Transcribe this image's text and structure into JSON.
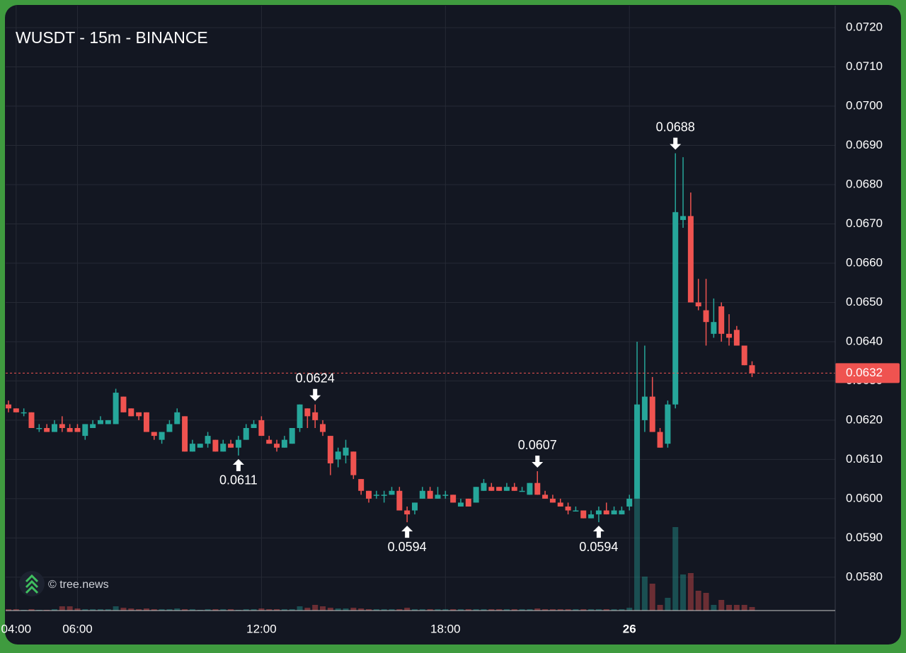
{
  "chart_data": {
    "type": "candlestick",
    "title": "WUSDT - 15m - BINANCE",
    "watermark": "© tree.news",
    "categories": [
      "03:45",
      "04:00",
      "04:15",
      "04:30",
      "04:45",
      "05:00",
      "05:15",
      "05:30",
      "05:45",
      "06:00",
      "06:15",
      "06:30",
      "06:45",
      "07:00",
      "07:15",
      "07:30",
      "07:45",
      "08:00",
      "08:15",
      "08:30",
      "08:45",
      "09:00",
      "09:15",
      "09:30",
      "09:45",
      "10:00",
      "10:15",
      "10:30",
      "10:45",
      "11:00",
      "11:15",
      "11:30",
      "11:45",
      "12:00",
      "12:15",
      "12:30",
      "12:45",
      "13:00",
      "13:15",
      "13:30",
      "13:45",
      "14:00",
      "14:15",
      "14:30",
      "14:45",
      "15:00",
      "15:15",
      "15:30",
      "15:45",
      "16:00",
      "16:15",
      "16:30",
      "16:45",
      "17:00",
      "17:15",
      "17:30",
      "17:45",
      "18:00",
      "18:15",
      "18:30",
      "18:45",
      "19:00",
      "19:15",
      "19:30",
      "19:45",
      "20:00",
      "20:15",
      "20:30",
      "20:45",
      "21:00",
      "21:15",
      "21:30",
      "21:45",
      "22:00",
      "22:15",
      "22:30",
      "22:45",
      "23:00",
      "23:15",
      "23:30",
      "23:45",
      "00:00",
      "00:15",
      "00:30",
      "00:45",
      "01:00",
      "01:15",
      "01:30",
      "01:45",
      "02:00",
      "02:15",
      "02:30",
      "02:45",
      "03:00",
      "03:15",
      "03:30",
      "03:45",
      "04:00"
    ],
    "open": [
      0.0624,
      0.0623,
      0.0622,
      0.0622,
      0.0618,
      0.0618,
      0.0617,
      0.0619,
      0.0618,
      0.0618,
      0.0616,
      0.0618,
      0.0619,
      0.0619,
      0.0619,
      0.0626,
      0.0623,
      0.0622,
      0.0622,
      0.0617,
      0.0615,
      0.0617,
      0.0619,
      0.0621,
      0.0612,
      0.0613,
      0.0614,
      0.0615,
      0.0612,
      0.0614,
      0.0613,
      0.0615,
      0.0618,
      0.062,
      0.0615,
      0.0614,
      0.0613,
      0.0614,
      0.0618,
      0.0623,
      0.0622,
      0.0619,
      0.0616,
      0.061,
      0.0611,
      0.0612,
      0.0605,
      0.0602,
      0.0601,
      0.0601,
      0.0601,
      0.0602,
      0.0597,
      0.0597,
      0.06,
      0.0602,
      0.06,
      0.0601,
      0.0601,
      0.0598,
      0.06,
      0.0599,
      0.0602,
      0.0603,
      0.0603,
      0.0602,
      0.0603,
      0.0602,
      0.0601,
      0.0604,
      0.0601,
      0.06,
      0.0599,
      0.0598,
      0.0597,
      0.0597,
      0.0595,
      0.0596,
      0.0597,
      0.0596,
      0.0596,
      0.0598,
      0.06,
      0.062,
      0.0626,
      0.0617,
      0.0614,
      0.0624,
      0.0671,
      0.0672,
      0.065,
      0.0648,
      0.0642,
      0.0649,
      0.0642,
      0.0643,
      0.0639,
      0.0634
    ],
    "high": [
      0.0625,
      0.0623,
      0.0623,
      0.0622,
      0.0619,
      0.0619,
      0.062,
      0.0621,
      0.0619,
      0.0619,
      0.0619,
      0.062,
      0.0621,
      0.062,
      0.0628,
      0.0626,
      0.0623,
      0.0622,
      0.0622,
      0.0617,
      0.0617,
      0.062,
      0.0623,
      0.0621,
      0.0615,
      0.0614,
      0.0617,
      0.0615,
      0.0615,
      0.0615,
      0.0616,
      0.0619,
      0.062,
      0.0621,
      0.0616,
      0.0615,
      0.0616,
      0.0618,
      0.0624,
      0.0623,
      0.0624,
      0.062,
      0.0616,
      0.0613,
      0.0615,
      0.0612,
      0.0605,
      0.0602,
      0.0602,
      0.0602,
      0.0603,
      0.0603,
      0.0598,
      0.0599,
      0.0603,
      0.0603,
      0.0603,
      0.0602,
      0.0601,
      0.06,
      0.06,
      0.0603,
      0.0605,
      0.0604,
      0.0603,
      0.0604,
      0.0604,
      0.0603,
      0.0604,
      0.0607,
      0.0602,
      0.0601,
      0.06,
      0.0599,
      0.0598,
      0.0597,
      0.0597,
      0.0598,
      0.0599,
      0.0598,
      0.0598,
      0.0601,
      0.064,
      0.0639,
      0.0631,
      0.0618,
      0.0625,
      0.0688,
      0.0687,
      0.0678,
      0.0656,
      0.0656,
      0.0651,
      0.065,
      0.0647,
      0.0644,
      0.0639,
      0.0635
    ],
    "low": [
      0.0622,
      0.0622,
      0.0621,
      0.0618,
      0.0617,
      0.0617,
      0.0617,
      0.0617,
      0.0617,
      0.0617,
      0.0615,
      0.0618,
      0.0619,
      0.0619,
      0.0619,
      0.0622,
      0.0621,
      0.062,
      0.0617,
      0.0615,
      0.0614,
      0.0617,
      0.0619,
      0.0612,
      0.0612,
      0.0613,
      0.0613,
      0.0612,
      0.0612,
      0.0613,
      0.0611,
      0.0615,
      0.0618,
      0.0616,
      0.0614,
      0.0612,
      0.0613,
      0.0614,
      0.0617,
      0.0618,
      0.0618,
      0.0616,
      0.0606,
      0.0608,
      0.0609,
      0.0605,
      0.0601,
      0.0599,
      0.06,
      0.0599,
      0.0601,
      0.0597,
      0.0594,
      0.0596,
      0.06,
      0.06,
      0.06,
      0.06,
      0.0599,
      0.0598,
      0.0598,
      0.0599,
      0.0602,
      0.0602,
      0.0602,
      0.0602,
      0.0602,
      0.0602,
      0.0601,
      0.0601,
      0.06,
      0.0599,
      0.0598,
      0.0596,
      0.0597,
      0.0595,
      0.0595,
      0.0594,
      0.0596,
      0.0596,
      0.0596,
      0.0597,
      0.06,
      0.0617,
      0.0617,
      0.0613,
      0.0613,
      0.0623,
      0.0669,
      0.065,
      0.0648,
      0.0639,
      0.0641,
      0.064,
      0.0639,
      0.0639,
      0.0634,
      0.0631
    ],
    "close": [
      0.0623,
      0.0622,
      0.0622,
      0.0618,
      0.0618,
      0.0617,
      0.0619,
      0.0618,
      0.0617,
      0.0617,
      0.0619,
      0.0619,
      0.062,
      0.062,
      0.0627,
      0.0622,
      0.0621,
      0.0621,
      0.0617,
      0.0616,
      0.0617,
      0.0619,
      0.0622,
      0.0612,
      0.0614,
      0.0614,
      0.0616,
      0.0612,
      0.0614,
      0.0613,
      0.0615,
      0.0618,
      0.0619,
      0.0616,
      0.0614,
      0.0613,
      0.0615,
      0.0618,
      0.0624,
      0.0621,
      0.062,
      0.0617,
      0.0609,
      0.0612,
      0.0613,
      0.0606,
      0.0602,
      0.06,
      0.0601,
      0.0601,
      0.0602,
      0.0597,
      0.0596,
      0.0599,
      0.0602,
      0.06,
      0.0601,
      0.0601,
      0.0599,
      0.0599,
      0.0598,
      0.0603,
      0.0604,
      0.0602,
      0.0602,
      0.0603,
      0.0602,
      0.0602,
      0.0604,
      0.0601,
      0.06,
      0.0599,
      0.0598,
      0.0597,
      0.0597,
      0.0595,
      0.0596,
      0.0597,
      0.0596,
      0.0597,
      0.0597,
      0.06,
      0.0624,
      0.0626,
      0.0617,
      0.0613,
      0.0624,
      0.0673,
      0.0672,
      0.065,
      0.0649,
      0.0645,
      0.0645,
      0.0642,
      0.0641,
      0.0639,
      0.0634,
      0.0632
    ],
    "volume": [
      2,
      2,
      1,
      2,
      1,
      1,
      2,
      6,
      6,
      3,
      2,
      2,
      2,
      2,
      6,
      4,
      3,
      2,
      3,
      2,
      2,
      2,
      3,
      2,
      2,
      1,
      2,
      2,
      2,
      2,
      1,
      2,
      2,
      3,
      2,
      2,
      2,
      2,
      6,
      4,
      8,
      6,
      4,
      3,
      3,
      4,
      3,
      2,
      2,
      2,
      2,
      2,
      4,
      2,
      2,
      2,
      2,
      2,
      2,
      2,
      2,
      2,
      2,
      2,
      2,
      2,
      2,
      2,
      2,
      3,
      2,
      2,
      2,
      2,
      2,
      2,
      2,
      2,
      2,
      2,
      2,
      4,
      158,
      48,
      38,
      8,
      18,
      118,
      51,
      53,
      28,
      25,
      8,
      15,
      8,
      8,
      8,
      5
    ],
    "up_color": "#26a69a",
    "down_color": "#ef5350",
    "grid": true,
    "ylim": [
      0.05715,
      0.07256
    ],
    "yticks": [
      {
        "value": 0.058,
        "label": "0.0580"
      },
      {
        "value": 0.059,
        "label": "0.0590"
      },
      {
        "value": 0.06,
        "label": "0.0600"
      },
      {
        "value": 0.061,
        "label": "0.0610"
      },
      {
        "value": 0.062,
        "label": "0.0620"
      },
      {
        "value": 0.063,
        "label": "0.0630"
      },
      {
        "value": 0.064,
        "label": "0.0640"
      },
      {
        "value": 0.065,
        "label": "0.0650"
      },
      {
        "value": 0.066,
        "label": "0.0660"
      },
      {
        "value": 0.067,
        "label": "0.0670"
      },
      {
        "value": 0.068,
        "label": "0.0680"
      },
      {
        "value": 0.069,
        "label": "0.0690"
      },
      {
        "value": 0.07,
        "label": "0.0700"
      },
      {
        "value": 0.071,
        "label": "0.0710"
      },
      {
        "value": 0.072,
        "label": "0.0720"
      }
    ],
    "xticks": [
      "06:00",
      "12:00",
      "18:00",
      {
        "value": "00:00",
        "label": "26"
      },
      "04:00"
    ],
    "last_price": {
      "value": 0.0632,
      "label": "0.0632"
    },
    "annotations": [
      {
        "at": "13:45",
        "value": 0.0624,
        "label": "0.0624",
        "position": "above"
      },
      {
        "at": "11:15",
        "value": 0.0611,
        "label": "0.0611",
        "position": "below"
      },
      {
        "at": "16:45",
        "value": 0.0594,
        "label": "0.0594",
        "position": "below"
      },
      {
        "at": "21:00",
        "value": 0.0607,
        "label": "0.0607",
        "position": "above"
      },
      {
        "at": "23:00",
        "value": 0.0594,
        "label": "0.0594",
        "position": "below"
      },
      {
        "at": "01:30",
        "value": 0.0688,
        "label": "0.0688",
        "position": "above"
      }
    ]
  }
}
